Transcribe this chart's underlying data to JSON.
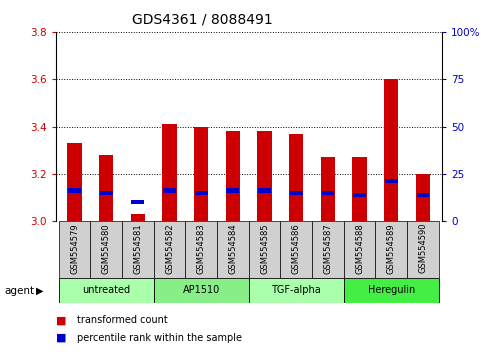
{
  "title": "GDS4361 / 8088491",
  "samples": [
    "GSM554579",
    "GSM554580",
    "GSM554581",
    "GSM554582",
    "GSM554583",
    "GSM554584",
    "GSM554585",
    "GSM554586",
    "GSM554587",
    "GSM554588",
    "GSM554589",
    "GSM554590"
  ],
  "red_values": [
    3.33,
    3.28,
    3.03,
    3.41,
    3.4,
    3.38,
    3.38,
    3.37,
    3.27,
    3.27,
    3.6,
    3.2
  ],
  "blue_values": [
    3.13,
    3.12,
    3.08,
    3.13,
    3.12,
    3.13,
    3.13,
    3.12,
    3.12,
    3.11,
    3.17,
    3.11
  ],
  "ymin": 3.0,
  "ymax": 3.8,
  "yticks": [
    3.0,
    3.2,
    3.4,
    3.6,
    3.8
  ],
  "right_yticks": [
    0,
    25,
    50,
    75,
    100
  ],
  "right_ytick_positions": [
    3.0,
    3.2,
    3.4,
    3.6,
    3.8
  ],
  "groups": [
    {
      "label": "untreated",
      "start": 0,
      "end": 3,
      "color": "#aaffaa"
    },
    {
      "label": "AP1510",
      "start": 3,
      "end": 6,
      "color": "#88ee88"
    },
    {
      "label": "TGF-alpha",
      "start": 6,
      "end": 9,
      "color": "#aaffaa"
    },
    {
      "label": "Heregulin",
      "start": 9,
      "end": 12,
      "color": "#44ee44"
    }
  ],
  "bar_color_red": "#cc0000",
  "bar_color_blue": "#0000cc",
  "bar_width": 0.45,
  "background_color": "#ffffff",
  "plot_bg_color": "#ffffff",
  "sample_bg_color": "#d0d0d0",
  "grid_color": "#000000",
  "left_tick_color": "#cc0000",
  "right_tick_color": "#0000cc",
  "legend_red": "transformed count",
  "legend_blue": "percentile rank within the sample",
  "agent_label": "agent",
  "title_fontsize": 10,
  "tick_fontsize": 7.5,
  "label_fontsize": 6
}
